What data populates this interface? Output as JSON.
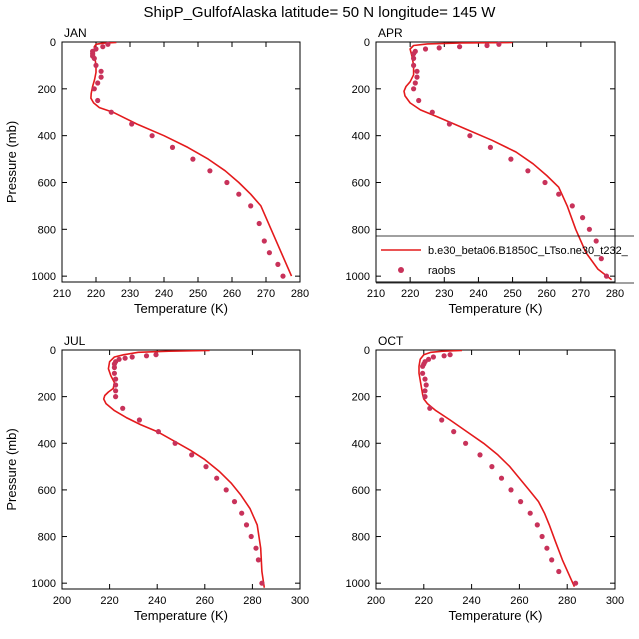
{
  "figure": {
    "title": "ShipP_GulfofAlaska  latitude= 50 N longitude= 145 W",
    "colors": {
      "model": "#e41a1c",
      "obs": "#c8325a",
      "axis": "#000000"
    }
  },
  "legend": {
    "entries": [
      {
        "label": "b.e30_beta06.B1850C_LTso.ne30_t232_",
        "kind": "line"
      },
      {
        "label": "raobs",
        "kind": "marker"
      }
    ]
  },
  "chart_data": [
    {
      "type": "line",
      "label": "JAN",
      "xlabel": "Temperature (K)",
      "ylabel": "Pressure (mb)",
      "xlim": [
        210,
        280
      ],
      "ylim": [
        1025,
        0
      ],
      "xticks": [
        210,
        220,
        230,
        240,
        250,
        260,
        270,
        280
      ],
      "yticks": [
        0,
        200,
        400,
        600,
        800,
        1000
      ],
      "series": [
        {
          "role": "model",
          "x": [
            226,
            222,
            220,
            219.5,
            219.5,
            219.5,
            219.8,
            220,
            220,
            219.6,
            219,
            218.6,
            218.5,
            219.3,
            221,
            225,
            232,
            240,
            247,
            253,
            258,
            262,
            265.5,
            268.5,
            271.5,
            274.5,
            277.5
          ],
          "y": [
            2,
            5,
            10,
            20,
            40,
            60,
            80,
            100,
            130,
            160,
            190,
            220,
            240,
            260,
            280,
            300,
            350,
            400,
            450,
            500,
            550,
            600,
            650,
            700,
            800,
            900,
            1000
          ]
        },
        {
          "role": "obs",
          "x": [
            223.5,
            222,
            220,
            219,
            219,
            219,
            219.5,
            220,
            221.5,
            221.5,
            220.5,
            219.5,
            220.5,
            224.5,
            230.5,
            236.5,
            242.5,
            248.5,
            253.5,
            258.5,
            262,
            265.5,
            268,
            269.5,
            271,
            273.5,
            275
          ],
          "y": [
            10,
            20,
            30,
            40,
            50,
            60,
            70,
            100,
            125,
            150,
            175,
            200,
            250,
            300,
            350,
            400,
            450,
            500,
            550,
            600,
            650,
            700,
            775,
            850,
            900,
            950,
            1000
          ]
        }
      ]
    },
    {
      "type": "line",
      "label": "APR",
      "xlabel": "Temperature (K)",
      "ylabel": "",
      "xlim": [
        210,
        280
      ],
      "ylim": [
        1025,
        0
      ],
      "xticks": [
        210,
        220,
        230,
        240,
        250,
        260,
        270,
        280
      ],
      "yticks": [
        0,
        200,
        400,
        600,
        800,
        1000
      ],
      "series": [
        {
          "role": "model",
          "x": [
            250,
            235,
            225,
            221,
            220,
            220.5,
            221,
            221,
            220,
            218.8,
            218.2,
            218.5,
            220,
            223,
            228,
            236,
            244,
            251,
            256,
            260,
            263.5,
            266,
            268.5,
            271.5,
            275,
            279
          ],
          "y": [
            2,
            4,
            8,
            15,
            30,
            60,
            100,
            140,
            170,
            190,
            210,
            230,
            260,
            290,
            320,
            370,
            420,
            470,
            520,
            570,
            620,
            700,
            800,
            900,
            970,
            1015
          ]
        },
        {
          "role": "obs",
          "x": [
            246,
            242.5,
            234.5,
            228.5,
            224.5,
            221.5,
            221,
            221,
            221,
            222,
            222,
            221.5,
            221,
            222.5,
            226.5,
            231.5,
            237.5,
            243.5,
            249.5,
            254.5,
            259.5,
            263.5,
            267.5,
            270.5,
            272.5,
            274.5,
            276,
            277.5
          ],
          "y": [
            10,
            15,
            20,
            25,
            30,
            40,
            50,
            70,
            100,
            125,
            150,
            175,
            200,
            250,
            300,
            350,
            400,
            450,
            500,
            550,
            600,
            650,
            700,
            750,
            800,
            850,
            925,
            1000
          ]
        }
      ]
    },
    {
      "type": "line",
      "label": "JUL",
      "xlabel": "Temperature (K)",
      "ylabel": "Pressure (mb)",
      "xlim": [
        200,
        300
      ],
      "ylim": [
        1025,
        0
      ],
      "xticks": [
        200,
        220,
        240,
        260,
        280,
        300
      ],
      "yticks": [
        0,
        200,
        400,
        600,
        800,
        1000
      ],
      "series": [
        {
          "role": "model",
          "x": [
            262,
            245,
            232,
            226,
            222,
            220,
            219.5,
            220.5,
            222,
            221.5,
            219.5,
            218,
            217.5,
            218.5,
            222,
            227,
            233,
            240,
            247,
            254,
            260,
            266,
            271,
            275,
            279,
            282,
            283.5,
            284,
            285
          ],
          "y": [
            2,
            5,
            10,
            20,
            30,
            50,
            80,
            110,
            140,
            165,
            180,
            195,
            210,
            230,
            260,
            290,
            320,
            350,
            390,
            430,
            470,
            520,
            570,
            620,
            680,
            750,
            850,
            950,
            1020
          ]
        },
        {
          "role": "obs",
          "x": [
            239.5,
            235.5,
            229.5,
            226.5,
            224,
            222.5,
            222,
            222,
            222,
            222.5,
            222.5,
            222.5,
            222.5,
            225.5,
            232.5,
            240.5,
            247.5,
            254.5,
            260.5,
            265,
            269,
            272.5,
            275.5,
            277.5,
            279.5,
            281.5,
            282.5,
            284
          ],
          "y": [
            20,
            25,
            30,
            35,
            40,
            50,
            60,
            75,
            100,
            125,
            150,
            175,
            200,
            250,
            300,
            350,
            400,
            450,
            500,
            550,
            600,
            650,
            700,
            750,
            800,
            850,
            900,
            1000
          ]
        }
      ]
    },
    {
      "type": "line",
      "label": "OCT",
      "xlabel": "Temperature (K)",
      "ylabel": "",
      "xlim": [
        200,
        300
      ],
      "ylim": [
        1025,
        0
      ],
      "xticks": [
        200,
        220,
        240,
        260,
        280,
        300
      ],
      "yticks": [
        0,
        200,
        400,
        600,
        800,
        1000
      ],
      "series": [
        {
          "role": "model",
          "x": [
            236,
            228,
            223,
            220,
            218.5,
            218,
            218,
            218.5,
            219,
            219.5,
            220,
            221.5,
            225,
            231,
            238,
            245,
            251,
            256,
            260,
            264,
            268,
            270.5,
            272.5,
            275,
            278,
            283
          ],
          "y": [
            2,
            5,
            10,
            20,
            40,
            70,
            100,
            130,
            160,
            190,
            210,
            230,
            260,
            300,
            350,
            400,
            450,
            500,
            550,
            600,
            650,
            700,
            750,
            820,
            900,
            1015
          ]
        },
        {
          "role": "obs",
          "x": [
            231,
            228.5,
            224,
            222,
            220.5,
            220,
            219.5,
            219.5,
            220.5,
            221,
            220.5,
            220.5,
            222.5,
            227.5,
            232.5,
            237.5,
            243.5,
            248.5,
            252.5,
            256.5,
            260.5,
            264.5,
            267.5,
            269.5,
            271.5,
            273.5,
            276.5,
            283.5
          ],
          "y": [
            20,
            25,
            30,
            40,
            50,
            60,
            70,
            100,
            125,
            150,
            175,
            200,
            250,
            300,
            350,
            400,
            450,
            500,
            550,
            600,
            650,
            700,
            750,
            800,
            850,
            900,
            950,
            1000
          ]
        }
      ]
    }
  ]
}
